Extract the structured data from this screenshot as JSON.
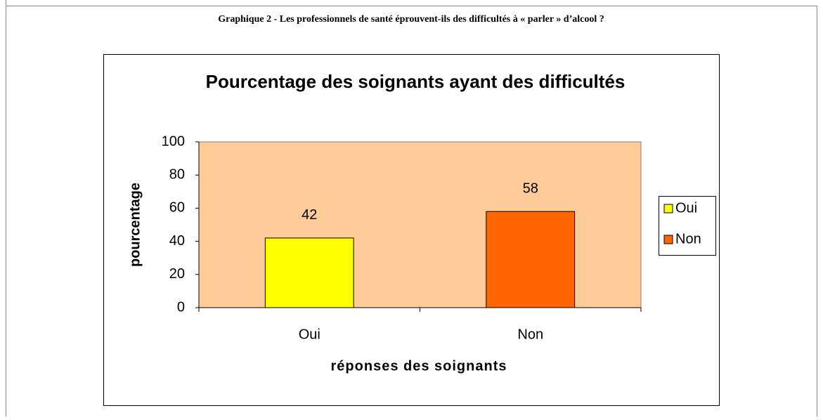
{
  "caption": "Graphique 2 - Les professionnels de santé éprouvent-ils des difficultés à « parler » d’alcool ?",
  "chart_data": {
    "type": "bar",
    "title": "Pourcentage des soignants ayant des difficultés",
    "x_label": "réponses des soignants",
    "y_label": "pourcentage",
    "categories": [
      "Oui",
      "Non"
    ],
    "values": [
      42,
      58
    ],
    "colors": [
      "#ffff00",
      "#ff6600"
    ],
    "ylim": [
      0,
      100
    ],
    "yticks": [
      0,
      20,
      40,
      60,
      80,
      100
    ],
    "legend": "right",
    "plot_background": "#ffcc99"
  }
}
